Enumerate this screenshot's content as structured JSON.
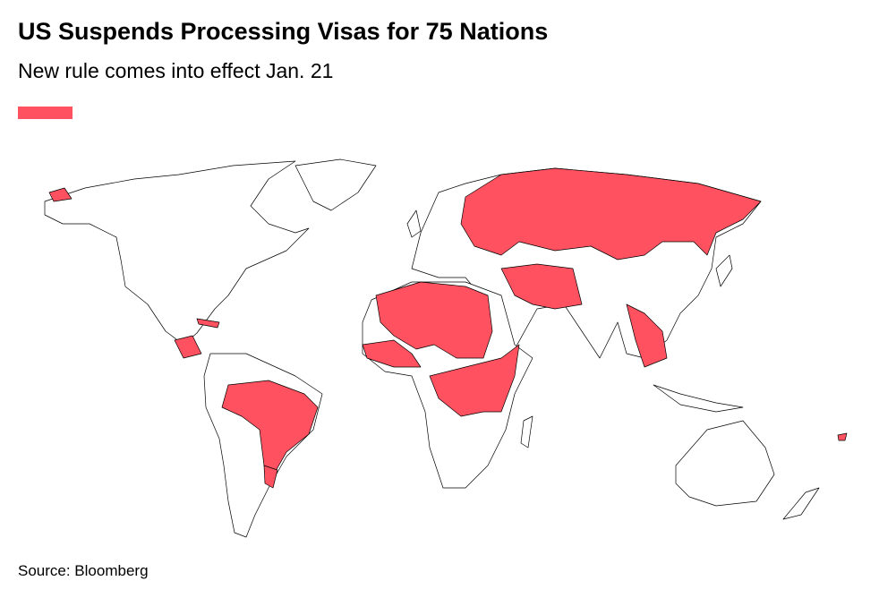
{
  "header": {
    "title": "US Suspends Processing Visas for 75 Nations",
    "subtitle": "New rule comes into effect Jan. 21"
  },
  "legend": {
    "color": "#ff515f"
  },
  "footer": {
    "source": "Source: Bloomberg"
  }
}
